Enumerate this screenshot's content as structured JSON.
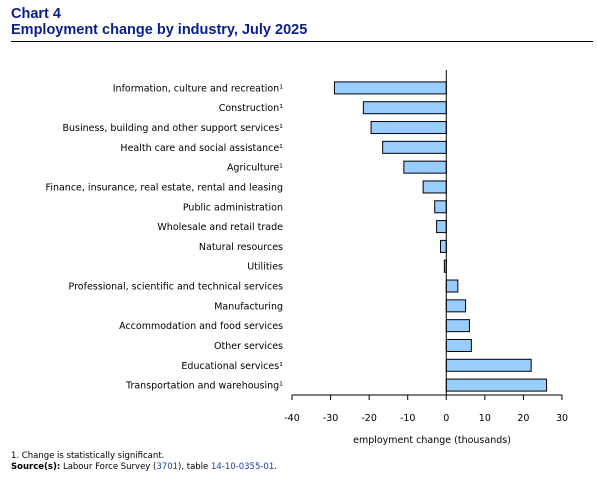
{
  "header": {
    "chart_number": "Chart 4",
    "title": "Employment change by industry, July 2025"
  },
  "footer": {
    "note": "1. Change is statistically significant.",
    "source_label": "Source(s):",
    "source_text_1": " Labour Force Survey (",
    "source_link_1": "3701",
    "source_text_2": "), table ",
    "source_link_2": "14-10-0355-01",
    "source_text_3": "."
  },
  "colors": {
    "bar_fill": "#99ccff",
    "bar_stroke": "#000000",
    "title": "#0a1d8f"
  },
  "chart_data": {
    "type": "bar",
    "orientation": "horizontal",
    "title": "Employment change by industry, July 2025",
    "xlabel": "employment change (thousands)",
    "ylabel": "",
    "xlim": [
      -40,
      30
    ],
    "xticks": [
      -40,
      -30,
      -20,
      -10,
      0,
      10,
      20,
      30
    ],
    "grid": false,
    "categories": [
      "Information, culture and recreation¹",
      "Construction¹",
      "Business, building and other support services¹",
      "Health care and social assistance¹",
      "Agriculture¹",
      "Finance, insurance, real estate, rental and leasing",
      "Public administration",
      "Wholesale and retail trade",
      "Natural resources",
      "Utilities",
      "Professional, scientific and technical services",
      "Manufacturing",
      "Accommodation and food services",
      "Other services",
      "Educational services¹",
      "Transportation and warehousing¹"
    ],
    "values": [
      -29,
      -21.5,
      -19.5,
      -16.5,
      -11,
      -6,
      -3,
      -2.5,
      -1.5,
      -0.5,
      3,
      5,
      6,
      6.5,
      22,
      26
    ]
  }
}
